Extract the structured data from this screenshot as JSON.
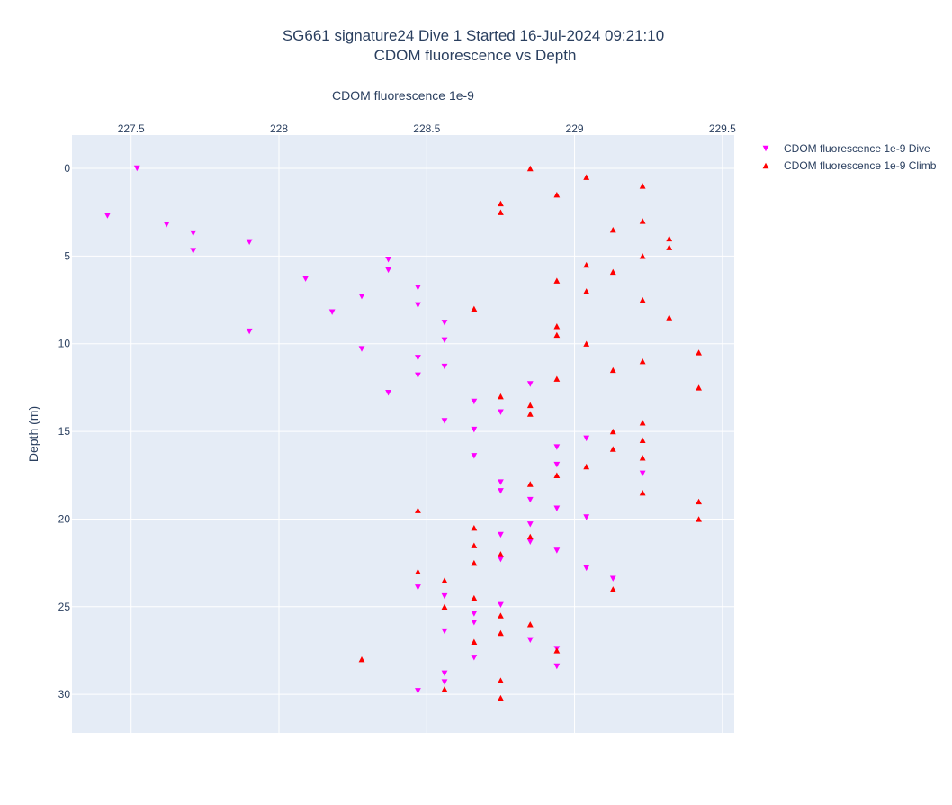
{
  "chart_data": {
    "type": "scatter",
    "title_line1": "SG661 signature24 Dive 1 Started 16-Jul-2024 09:21:10",
    "title_line2": "CDOM fluorescence vs Depth",
    "xlabel": "CDOM fluorescence 1e-9",
    "ylabel": "Depth (m)",
    "xlim": [
      227.3,
      229.54
    ],
    "ylim": [
      32.2,
      -1.9
    ],
    "y_reversed": true,
    "x_axis_side": "top",
    "xticks": [
      227.5,
      228,
      228.5,
      229,
      229.5
    ],
    "xtick_labels": [
      "227.5",
      "228",
      "228.5",
      "229",
      "229.5"
    ],
    "yticks": [
      0,
      5,
      10,
      15,
      20,
      25,
      30
    ],
    "ytick_labels": [
      "0",
      "5",
      "10",
      "15",
      "20",
      "25",
      "30"
    ],
    "grid": true,
    "legend_position": "top-right outside",
    "series": [
      {
        "name": "CDOM fluorescence 1e-9 Dive",
        "marker": "triangle-down",
        "color": "#ff00ff",
        "points": [
          [
            227.52,
            0.0
          ],
          [
            227.42,
            2.7
          ],
          [
            227.62,
            3.2
          ],
          [
            227.71,
            3.7
          ],
          [
            227.9,
            4.2
          ],
          [
            227.71,
            4.7
          ],
          [
            228.37,
            5.2
          ],
          [
            228.37,
            5.8
          ],
          [
            228.09,
            6.3
          ],
          [
            228.47,
            6.8
          ],
          [
            228.28,
            7.3
          ],
          [
            228.47,
            7.8
          ],
          [
            228.18,
            8.2
          ],
          [
            228.56,
            8.8
          ],
          [
            227.9,
            9.3
          ],
          [
            228.56,
            9.8
          ],
          [
            228.28,
            10.3
          ],
          [
            228.47,
            10.8
          ],
          [
            228.56,
            11.3
          ],
          [
            228.47,
            11.8
          ],
          [
            228.85,
            12.3
          ],
          [
            228.37,
            12.8
          ],
          [
            228.66,
            13.3
          ],
          [
            228.75,
            13.9
          ],
          [
            228.56,
            14.4
          ],
          [
            228.66,
            14.9
          ],
          [
            229.04,
            15.4
          ],
          [
            228.94,
            15.9
          ],
          [
            228.66,
            16.4
          ],
          [
            228.94,
            16.9
          ],
          [
            229.23,
            17.4
          ],
          [
            228.75,
            17.9
          ],
          [
            228.75,
            18.4
          ],
          [
            228.85,
            18.9
          ],
          [
            228.94,
            19.4
          ],
          [
            229.04,
            19.9
          ],
          [
            228.85,
            20.3
          ],
          [
            228.75,
            20.9
          ],
          [
            228.85,
            21.3
          ],
          [
            228.94,
            21.8
          ],
          [
            228.75,
            22.3
          ],
          [
            229.04,
            22.8
          ],
          [
            229.13,
            23.4
          ],
          [
            228.47,
            23.9
          ],
          [
            228.56,
            24.4
          ],
          [
            228.75,
            24.9
          ],
          [
            228.66,
            25.4
          ],
          [
            228.66,
            25.9
          ],
          [
            228.56,
            26.4
          ],
          [
            228.85,
            26.9
          ],
          [
            228.94,
            27.4
          ],
          [
            228.66,
            27.9
          ],
          [
            228.94,
            28.4
          ],
          [
            228.56,
            28.8
          ],
          [
            228.56,
            29.3
          ],
          [
            228.47,
            29.8
          ]
        ]
      },
      {
        "name": "CDOM fluorescence 1e-9 Climb",
        "marker": "triangle-up",
        "color": "#ff0000",
        "points": [
          [
            228.85,
            0.0
          ],
          [
            229.04,
            0.5
          ],
          [
            229.23,
            1.0
          ],
          [
            228.94,
            1.5
          ],
          [
            228.75,
            2.0
          ],
          [
            228.75,
            2.5
          ],
          [
            229.23,
            3.0
          ],
          [
            229.13,
            3.5
          ],
          [
            229.32,
            4.0
          ],
          [
            229.32,
            4.5
          ],
          [
            229.23,
            5.0
          ],
          [
            229.04,
            5.5
          ],
          [
            229.13,
            5.9
          ],
          [
            228.94,
            6.4
          ],
          [
            229.04,
            7.0
          ],
          [
            229.23,
            7.5
          ],
          [
            228.66,
            8.0
          ],
          [
            229.32,
            8.5
          ],
          [
            228.94,
            9.0
          ],
          [
            228.94,
            9.5
          ],
          [
            229.04,
            10.0
          ],
          [
            229.42,
            10.5
          ],
          [
            229.23,
            11.0
          ],
          [
            229.13,
            11.5
          ],
          [
            228.94,
            12.0
          ],
          [
            229.42,
            12.5
          ],
          [
            228.75,
            13.0
          ],
          [
            228.85,
            13.5
          ],
          [
            228.85,
            14.0
          ],
          [
            229.23,
            14.5
          ],
          [
            229.13,
            15.0
          ],
          [
            229.23,
            15.5
          ],
          [
            229.13,
            16.0
          ],
          [
            229.23,
            16.5
          ],
          [
            229.04,
            17.0
          ],
          [
            228.94,
            17.5
          ],
          [
            228.85,
            18.0
          ],
          [
            229.23,
            18.5
          ],
          [
            229.42,
            19.0
          ],
          [
            228.47,
            19.5
          ],
          [
            229.42,
            20.0
          ],
          [
            228.66,
            20.5
          ],
          [
            228.85,
            21.0
          ],
          [
            228.66,
            21.5
          ],
          [
            228.75,
            22.0
          ],
          [
            228.66,
            22.5
          ],
          [
            228.47,
            23.0
          ],
          [
            228.56,
            23.5
          ],
          [
            229.13,
            24.0
          ],
          [
            228.66,
            24.5
          ],
          [
            228.56,
            25.0
          ],
          [
            228.75,
            25.5
          ],
          [
            228.85,
            26.0
          ],
          [
            228.75,
            26.5
          ],
          [
            228.66,
            27.0
          ],
          [
            228.94,
            27.5
          ],
          [
            228.28,
            28.0
          ],
          [
            228.75,
            29.2
          ],
          [
            228.56,
            29.7
          ],
          [
            228.75,
            30.2
          ]
        ]
      }
    ]
  }
}
